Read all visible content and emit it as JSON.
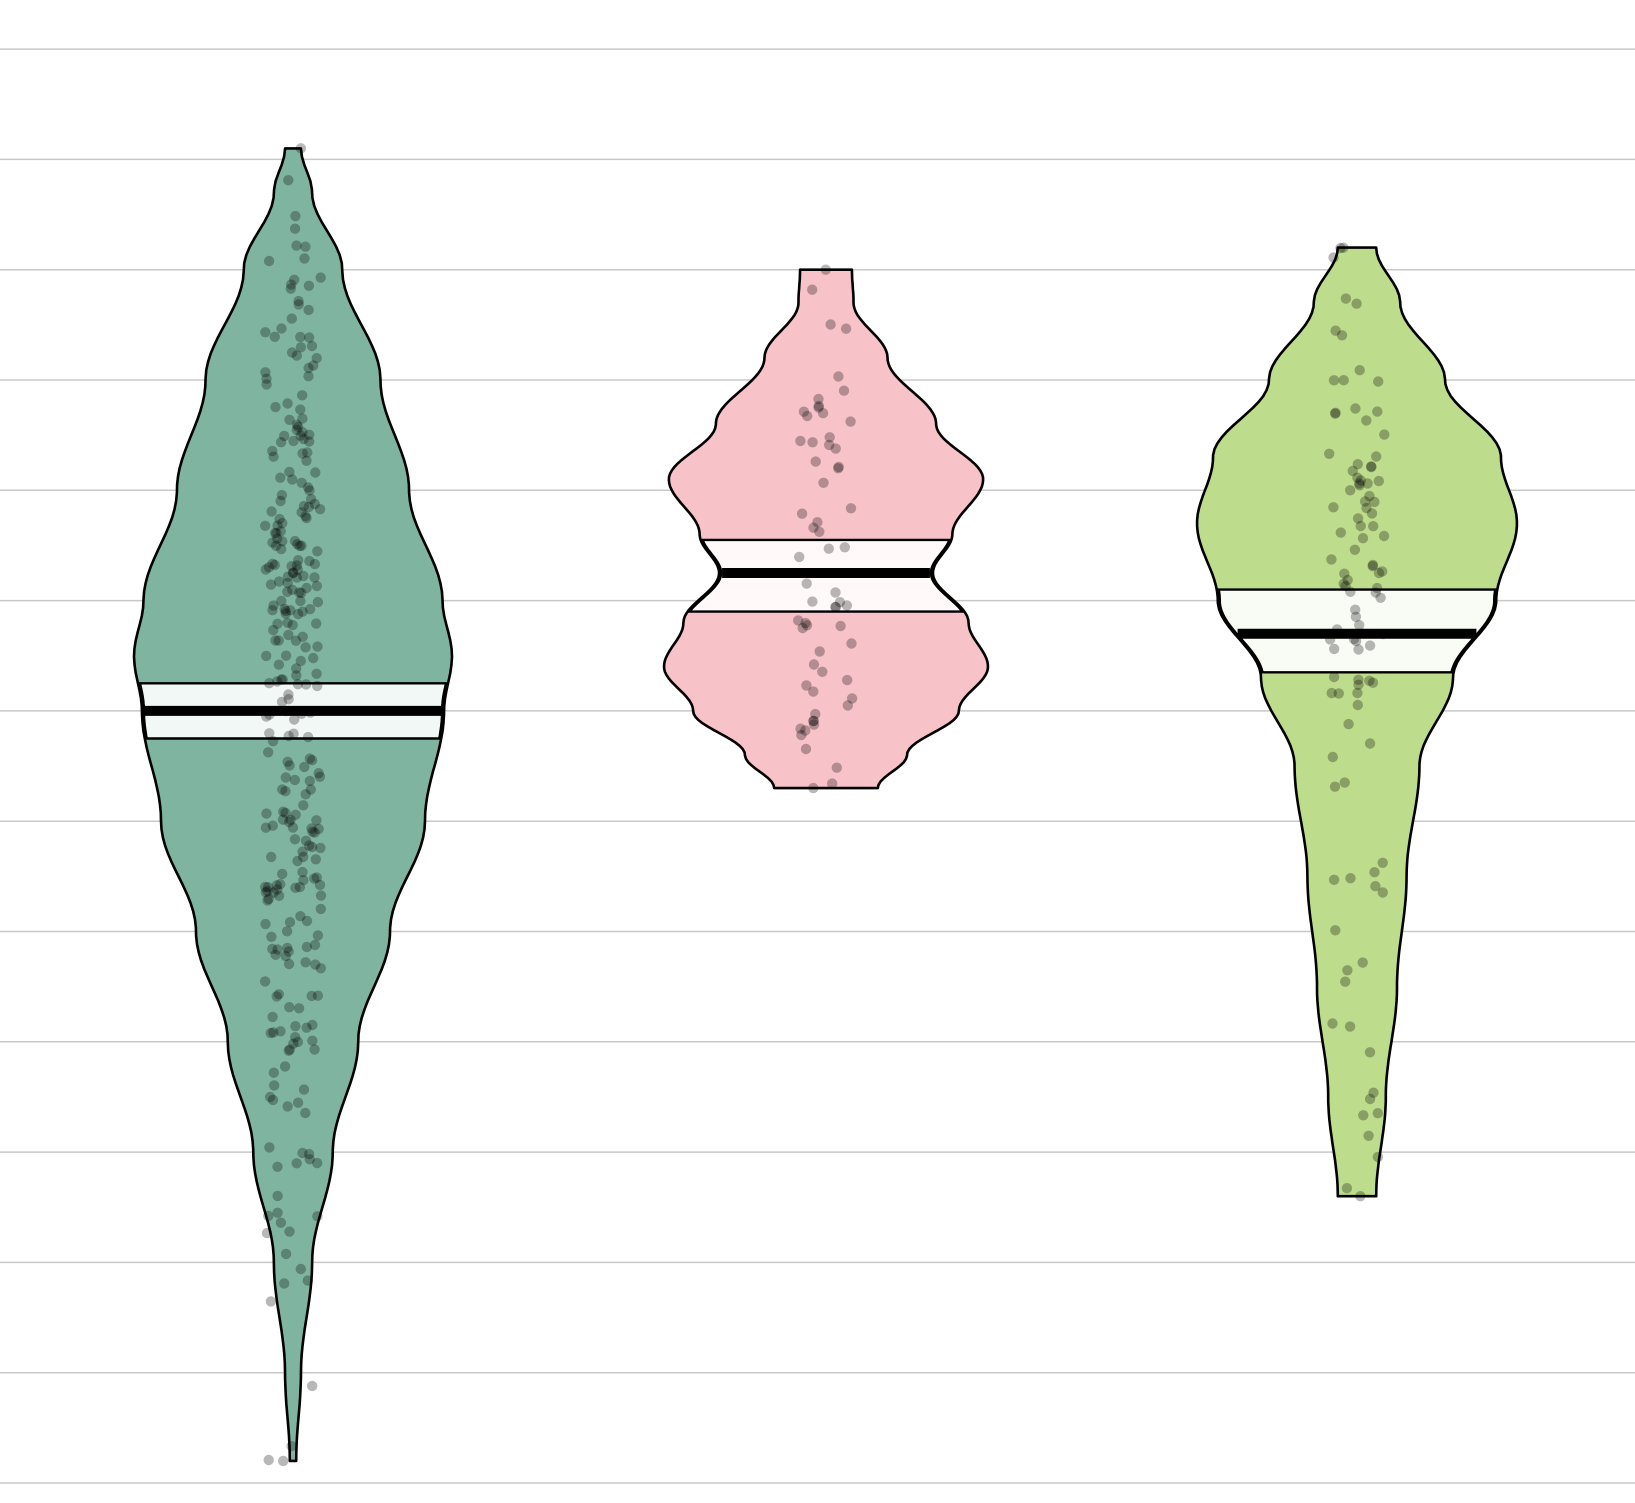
{
  "chart_data": {
    "type": "violin",
    "title": "",
    "xlabel": "",
    "ylabel": "",
    "ylim": [
      0,
      13.4
    ],
    "grid": {
      "horizontal": true,
      "vertical": false,
      "step": 1
    },
    "x_tick_labels": false,
    "y_tick_labels": false,
    "series": [
      {
        "color": "#7fb5a0",
        "points": 300,
        "min": 0.2,
        "max": 12.1,
        "q1": 6.75,
        "median": 7.0,
        "q3": 7.25,
        "density": [
          [
            0.2,
            0.02
          ],
          [
            1.0,
            0.05
          ],
          [
            2.0,
            0.12
          ],
          [
            3.0,
            0.25
          ],
          [
            4.0,
            0.41
          ],
          [
            5.0,
            0.61
          ],
          [
            6.0,
            0.83
          ],
          [
            7.0,
            0.95
          ],
          [
            7.5,
            1.0
          ],
          [
            8.0,
            0.94
          ],
          [
            9.0,
            0.73
          ],
          [
            10.0,
            0.55
          ],
          [
            11.0,
            0.31
          ],
          [
            11.7,
            0.12
          ],
          [
            12.1,
            0.05
          ]
        ]
      },
      {
        "color": "#f7c2c8",
        "points": 60,
        "min": 6.3,
        "max": 11.0,
        "q1": 7.9,
        "median": 8.25,
        "q3": 8.55,
        "density": [
          [
            6.3,
            0.32
          ],
          [
            6.6,
            0.5
          ],
          [
            7.0,
            0.82
          ],
          [
            7.4,
            1.0
          ],
          [
            7.8,
            0.88
          ],
          [
            8.25,
            0.66
          ],
          [
            8.6,
            0.78
          ],
          [
            9.1,
            0.97
          ],
          [
            9.6,
            0.68
          ],
          [
            10.2,
            0.38
          ],
          [
            10.7,
            0.17
          ],
          [
            11.0,
            0.16
          ]
        ]
      },
      {
        "color": "#bddc8c",
        "points": 100,
        "min": 2.6,
        "max": 11.2,
        "q1": 7.35,
        "median": 7.7,
        "q3": 8.1,
        "density": [
          [
            2.6,
            0.12
          ],
          [
            3.5,
            0.18
          ],
          [
            4.5,
            0.25
          ],
          [
            5.5,
            0.31
          ],
          [
            6.5,
            0.39
          ],
          [
            7.3,
            0.6
          ],
          [
            8.0,
            0.87
          ],
          [
            8.7,
            1.0
          ],
          [
            9.3,
            0.9
          ],
          [
            10.0,
            0.55
          ],
          [
            10.7,
            0.27
          ],
          [
            11.2,
            0.12
          ]
        ]
      }
    ]
  }
}
